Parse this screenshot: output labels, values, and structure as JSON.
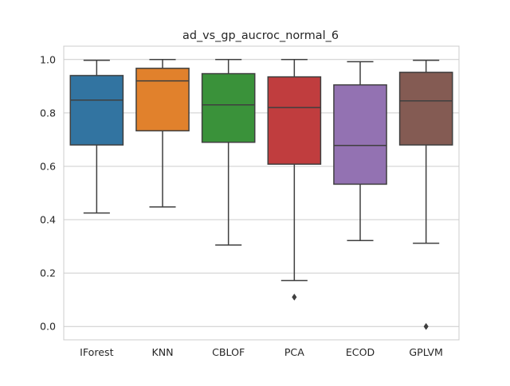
{
  "chart_data": {
    "type": "box",
    "title": "ad_vs_gp_aucroc_normal_6",
    "xlabel": "",
    "ylabel": "",
    "ylim": [
      -0.05,
      1.05
    ],
    "yticks": [
      0.0,
      0.2,
      0.4,
      0.6,
      0.8,
      1.0
    ],
    "ytick_labels": [
      "0.0",
      "0.2",
      "0.4",
      "0.6",
      "0.8",
      "1.0"
    ],
    "grid": true,
    "categories": [
      "IForest",
      "KNN",
      "CBLOF",
      "PCA",
      "ECOD",
      "GPLVM"
    ],
    "boxes": [
      {
        "category": "IForest",
        "color": "#3274a1",
        "whisker_low": 0.425,
        "q1": 0.68,
        "median": 0.848,
        "q3": 0.94,
        "whisker_high": 0.997,
        "outliers": []
      },
      {
        "category": "KNN",
        "color": "#e1812c",
        "whisker_low": 0.448,
        "q1": 0.733,
        "median": 0.92,
        "q3": 0.967,
        "whisker_high": 1.0,
        "outliers": []
      },
      {
        "category": "CBLOF",
        "color": "#3a923a",
        "whisker_low": 0.305,
        "q1": 0.69,
        "median": 0.83,
        "q3": 0.947,
        "whisker_high": 1.0,
        "outliers": []
      },
      {
        "category": "PCA",
        "color": "#c03d3e",
        "whisker_low": 0.172,
        "q1": 0.608,
        "median": 0.82,
        "q3": 0.935,
        "whisker_high": 1.0,
        "outliers": [
          0.11
        ]
      },
      {
        "category": "ECOD",
        "color": "#9372b2",
        "whisker_low": 0.322,
        "q1": 0.533,
        "median": 0.678,
        "q3": 0.905,
        "whisker_high": 0.992,
        "outliers": []
      },
      {
        "category": "GPLVM",
        "color": "#845b53",
        "whisker_low": 0.312,
        "q1": 0.68,
        "median": 0.845,
        "q3": 0.952,
        "whisker_high": 0.997,
        "outliers": [
          0.0
        ]
      }
    ]
  }
}
